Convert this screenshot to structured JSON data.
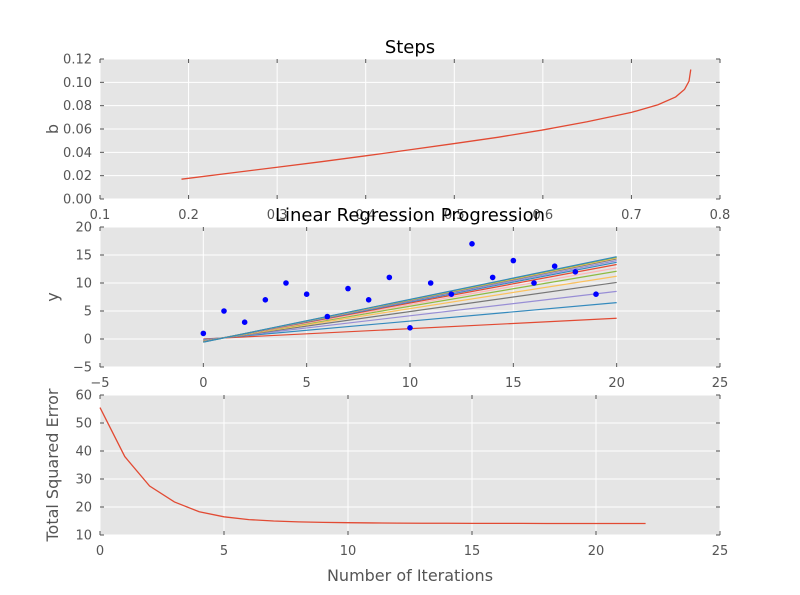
{
  "chart_data": [
    {
      "type": "line",
      "title": "Steps",
      "xlabel": "",
      "ylabel": "b",
      "xlim": [
        0.1,
        0.8
      ],
      "ylim": [
        0.0,
        0.12
      ],
      "xticks": [
        "0.1",
        "0.2",
        "0.3",
        "0.4",
        "0.5",
        "0.6",
        "0.7",
        "0.8"
      ],
      "yticks": [
        "0.00",
        "0.02",
        "0.04",
        "0.06",
        "0.08",
        "0.10",
        "0.12"
      ],
      "grid": true,
      "series": [
        {
          "color": "#e24a33",
          "x": [
            0.192,
            0.25,
            0.3,
            0.35,
            0.4,
            0.45,
            0.5,
            0.55,
            0.6,
            0.65,
            0.7,
            0.73,
            0.75,
            0.76,
            0.765,
            0.767
          ],
          "y": [
            0.017,
            0.0225,
            0.0272,
            0.032,
            0.037,
            0.0422,
            0.0475,
            0.053,
            0.0592,
            0.0662,
            0.0742,
            0.0808,
            0.0875,
            0.094,
            0.101,
            0.111
          ]
        }
      ]
    },
    {
      "type": "scatter",
      "title": "Linear Regression Progression",
      "xlabel": "",
      "ylabel": "y",
      "xlim": [
        -5,
        25
      ],
      "ylim": [
        -5,
        20
      ],
      "xticks": [
        "−5",
        "0",
        "5",
        "10",
        "15",
        "20",
        "25"
      ],
      "yticks": [
        "−5",
        "0",
        "5",
        "10",
        "15",
        "20"
      ],
      "grid": true,
      "points": {
        "color": "#0000ff",
        "x": [
          0,
          1,
          2,
          3,
          4,
          5,
          6,
          7,
          8,
          9,
          10,
          11,
          12,
          13,
          14,
          15,
          16,
          17,
          18,
          19
        ],
        "y": [
          1,
          5,
          3,
          7,
          10,
          8,
          4,
          9,
          7,
          11,
          2,
          10,
          8,
          17,
          11,
          14,
          10,
          13,
          12,
          8
        ]
      },
      "lines": [
        {
          "color": "#e24a33",
          "x": [
            0,
            20
          ],
          "y": [
            0.0,
            3.7
          ]
        },
        {
          "color": "#348abd",
          "x": [
            0,
            20
          ],
          "y": [
            -0.1,
            6.5
          ]
        },
        {
          "color": "#988ed5",
          "x": [
            0,
            20
          ],
          "y": [
            -0.2,
            8.5
          ]
        },
        {
          "color": "#777777",
          "x": [
            0,
            20
          ],
          "y": [
            -0.3,
            10.1
          ]
        },
        {
          "color": "#fbc15e",
          "x": [
            0,
            20
          ],
          "y": [
            -0.35,
            11.2
          ]
        },
        {
          "color": "#8eba42",
          "x": [
            0,
            20
          ],
          "y": [
            -0.4,
            12.1
          ]
        },
        {
          "color": "#ffb5b8",
          "x": [
            0,
            20
          ],
          "y": [
            -0.42,
            12.7
          ]
        },
        {
          "color": "#e24a33",
          "x": [
            0,
            20
          ],
          "y": [
            -0.45,
            13.3
          ]
        },
        {
          "color": "#348abd",
          "x": [
            0,
            20
          ],
          "y": [
            -0.47,
            13.7
          ]
        },
        {
          "color": "#988ed5",
          "x": [
            0,
            20
          ],
          "y": [
            -0.5,
            14.0
          ]
        },
        {
          "color": "#777777",
          "x": [
            0,
            20
          ],
          "y": [
            -0.52,
            14.3
          ]
        },
        {
          "color": "#fbc15e",
          "x": [
            0,
            20
          ],
          "y": [
            -0.54,
            14.45
          ]
        },
        {
          "color": "#8eba42",
          "x": [
            0,
            20
          ],
          "y": [
            -0.55,
            14.6
          ]
        },
        {
          "color": "#348abd",
          "x": [
            0,
            20
          ],
          "y": [
            -0.56,
            14.7
          ]
        }
      ]
    },
    {
      "type": "line",
      "title": "",
      "xlabel": "Number of Iterations",
      "ylabel": "Total Squared Error",
      "xlim": [
        0,
        25
      ],
      "ylim": [
        10,
        60
      ],
      "xticks": [
        "0",
        "5",
        "10",
        "15",
        "20",
        "25"
      ],
      "yticks": [
        "10",
        "20",
        "30",
        "40",
        "50",
        "60"
      ],
      "grid": true,
      "series": [
        {
          "color": "#e24a33",
          "x": [
            0,
            1,
            2,
            3,
            4,
            5,
            6,
            7,
            8,
            9,
            10,
            11,
            12,
            13,
            14,
            15,
            16,
            17,
            18,
            19,
            20,
            21,
            22
          ],
          "y": [
            55.5,
            38.0,
            27.5,
            21.8,
            18.3,
            16.5,
            15.5,
            15.0,
            14.7,
            14.5,
            14.4,
            14.3,
            14.25,
            14.2,
            14.2,
            14.15,
            14.15,
            14.15,
            14.1,
            14.1,
            14.1,
            14.1,
            14.1
          ]
        }
      ]
    }
  ]
}
